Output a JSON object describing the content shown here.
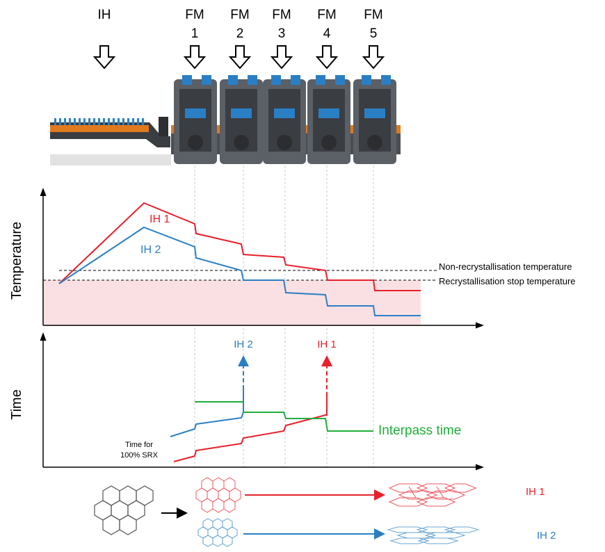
{
  "stations": [
    {
      "name": "IH",
      "number": ""
    },
    {
      "name": "FM",
      "number": "1"
    },
    {
      "name": "FM",
      "number": "2"
    },
    {
      "name": "FM",
      "number": "3"
    },
    {
      "name": "FM",
      "number": "4"
    },
    {
      "name": "FM",
      "number": "5"
    }
  ],
  "temperature_panel": {
    "ylabel": "Temperature",
    "series_labels": {
      "ih1": "IH 1",
      "ih2": "IH 2"
    },
    "reference_lines": {
      "non_recrystallisation": "Non-recrystallisation temperature",
      "recrystallisation_stop": "Recrystallisation stop temperature"
    }
  },
  "time_panel": {
    "ylabel": "Time",
    "arrow_labels": {
      "ih2": "IH 2",
      "ih1": "IH 1"
    },
    "srx_label_line1": "Time for",
    "srx_label_line2": "100% SRX",
    "interpass_label": "Interpass time"
  },
  "microstructure": {
    "ih1_label": "IH 1",
    "ih2_label": "IH 2"
  },
  "colors": {
    "ih1": "#e8202a",
    "ih2": "#2a7fc4",
    "interpass": "#1fae3a",
    "shade": "#fbe0e3"
  },
  "chart_data": [
    {
      "type": "line",
      "title": "",
      "xlabel": "",
      "ylabel": "Temperature",
      "grid": false,
      "note": "qualitative schematic, no numeric axes",
      "series": [
        {
          "name": "IH 1"
        },
        {
          "name": "IH 2"
        }
      ],
      "reference_lines": [
        "Non-recrystallisation temperature",
        "Recrystallisation stop temperature"
      ]
    },
    {
      "type": "line",
      "title": "",
      "xlabel": "",
      "ylabel": "Time",
      "grid": false,
      "note": "qualitative schematic, no numeric axes",
      "series": [
        {
          "name": "IH 1"
        },
        {
          "name": "IH 2"
        },
        {
          "name": "Interpass time"
        }
      ]
    }
  ]
}
